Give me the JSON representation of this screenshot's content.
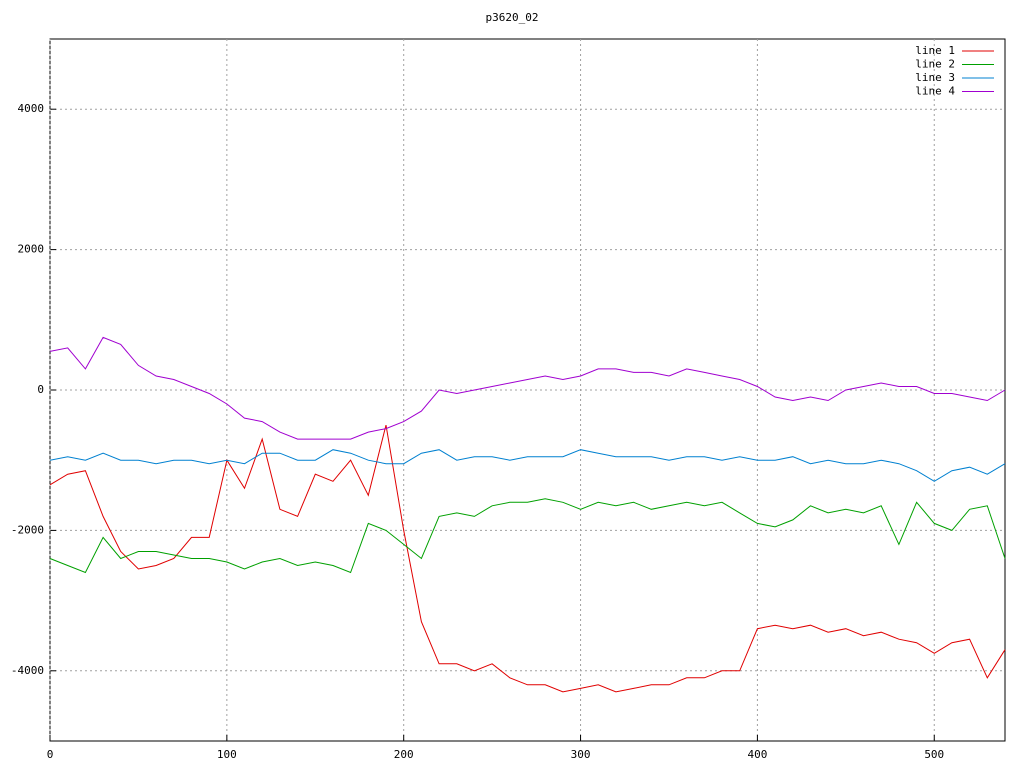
{
  "chart_data": {
    "type": "line",
    "title": "p3620_02",
    "x": [
      0,
      10,
      20,
      30,
      40,
      50,
      60,
      70,
      80,
      90,
      100,
      110,
      120,
      130,
      140,
      150,
      160,
      170,
      180,
      190,
      200,
      210,
      220,
      230,
      240,
      250,
      260,
      270,
      280,
      290,
      300,
      310,
      320,
      330,
      340,
      350,
      360,
      370,
      380,
      390,
      400,
      410,
      420,
      430,
      440,
      450,
      460,
      470,
      480,
      490,
      500,
      510,
      520,
      530,
      540
    ],
    "series": [
      {
        "name": "line 1",
        "color": "#e00000",
        "values": [
          -1350,
          -1200,
          -1150,
          -1800,
          -2300,
          -2550,
          -2500,
          -2400,
          -2100,
          -2100,
          -1000,
          -1400,
          -700,
          -1700,
          -1800,
          -1200,
          -1300,
          -1000,
          -1500,
          -500,
          -2000,
          -3300,
          -3900,
          -3900,
          -4000,
          -3900,
          -4100,
          -4200,
          -4200,
          -4300,
          -4250,
          -4200,
          -4300,
          -4250,
          -4200,
          -4200,
          -4100,
          -4100,
          -4000,
          -4000,
          -3400,
          -3350,
          -3400,
          -3350,
          -3450,
          -3400,
          -3500,
          -3450,
          -3550,
          -3600,
          -3750,
          -3600,
          -3550,
          -4100,
          -3700
        ]
      },
      {
        "name": "line 2",
        "color": "#00a000",
        "values": [
          -2400,
          -2500,
          -2600,
          -2100,
          -2400,
          -2300,
          -2300,
          -2350,
          -2400,
          -2400,
          -2450,
          -2550,
          -2450,
          -2400,
          -2500,
          -2450,
          -2500,
          -2600,
          -1900,
          -2000,
          -2200,
          -2400,
          -1800,
          -1750,
          -1800,
          -1650,
          -1600,
          -1600,
          -1550,
          -1600,
          -1700,
          -1600,
          -1650,
          -1600,
          -1700,
          -1650,
          -1600,
          -1650,
          -1600,
          -1750,
          -1900,
          -1950,
          -1850,
          -1650,
          -1750,
          -1700,
          -1750,
          -1650,
          -2200,
          -1600,
          -1900,
          -2000,
          -1700,
          -1650,
          -2400
        ]
      },
      {
        "name": "line 3",
        "color": "#0080d0",
        "values": [
          -1000,
          -950,
          -1000,
          -900,
          -1000,
          -1000,
          -1050,
          -1000,
          -1000,
          -1050,
          -1000,
          -1050,
          -900,
          -900,
          -1000,
          -1000,
          -850,
          -900,
          -1000,
          -1050,
          -1050,
          -900,
          -850,
          -1000,
          -950,
          -950,
          -1000,
          -950,
          -950,
          -950,
          -850,
          -900,
          -950,
          -950,
          -950,
          -1000,
          -950,
          -950,
          -1000,
          -950,
          -1000,
          -1000,
          -950,
          -1050,
          -1000,
          -1050,
          -1050,
          -1000,
          -1050,
          -1150,
          -1300,
          -1150,
          -1100,
          -1200,
          -1050
        ]
      },
      {
        "name": "line 4",
        "color": "#a000d0",
        "values": [
          550,
          600,
          300,
          750,
          650,
          350,
          200,
          150,
          50,
          -50,
          -200,
          -400,
          -450,
          -600,
          -700,
          -700,
          -700,
          -700,
          -600,
          -550,
          -450,
          -300,
          0,
          -50,
          0,
          50,
          100,
          150,
          200,
          150,
          200,
          300,
          300,
          250,
          250,
          200,
          300,
          250,
          200,
          150,
          50,
          -100,
          -150,
          -100,
          -150,
          0,
          50,
          100,
          50,
          50,
          -50,
          -50,
          -100,
          -150,
          0
        ]
      }
    ],
    "xlim": [
      0,
      540
    ],
    "xticks": [
      0,
      100,
      200,
      300,
      400,
      500
    ],
    "ylim": [
      -5000,
      5000
    ],
    "yticks": [
      -4000,
      -2000,
      0,
      2000,
      4000
    ],
    "grid": true,
    "legend": "top-right"
  }
}
